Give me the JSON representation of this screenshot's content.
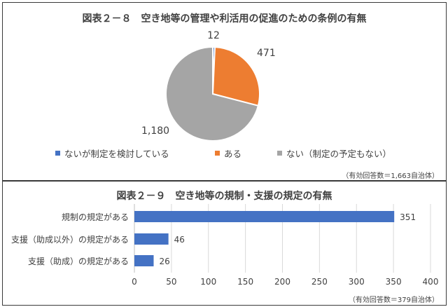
{
  "chart_data": [
    {
      "type": "pie",
      "title": "図表２－８　空き地等の管理や利活用の促進のための条例の有無",
      "categories": [
        "ないが制定を検討している",
        "ある",
        "ない（制定の予定もない）"
      ],
      "values": [
        12,
        471,
        1180
      ],
      "value_labels": [
        "12",
        "471",
        "1,180"
      ],
      "colors": [
        "#4472c4",
        "#ed7d31",
        "#a5a5a5"
      ],
      "legend_position": "bottom",
      "footnote": "（有効回答数＝1,663自治体）"
    },
    {
      "type": "bar",
      "orientation": "horizontal",
      "title": "図表２－９　空き地等の規制・支援の規定の有無",
      "categories": [
        "規制の規定がある",
        "支援（助成以外）の規定がある",
        "支援（助成）の規定がある"
      ],
      "values": [
        351,
        46,
        26
      ],
      "xlim": [
        0,
        400
      ],
      "xticks": [
        "0",
        "50",
        "100",
        "150",
        "200",
        "250",
        "300",
        "350",
        "400"
      ],
      "grid": true,
      "color": "#4472c4",
      "footnote": "（有効回答数＝379自治体）"
    }
  ]
}
